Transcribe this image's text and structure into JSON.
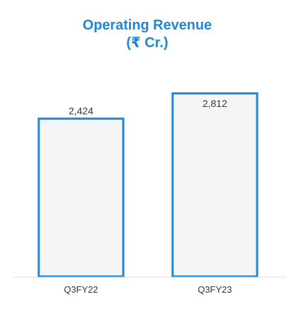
{
  "chart_data": {
    "type": "bar",
    "title": "Operating Revenue",
    "subtitle": "(₹ Cr.)",
    "categories": [
      "Q3FY22",
      "Q3FY23"
    ],
    "values": [
      2424,
      2812
    ],
    "value_labels": [
      "2,424",
      "2,812"
    ],
    "xlabel": "",
    "ylabel": "",
    "ylim": [
      0,
      2950
    ],
    "grid": false,
    "legend": "none",
    "colors": {
      "title": "#1f86d6",
      "bar_stroke": "#1f86d6",
      "bar_fill": "#f5f5f5",
      "axis": "#d9d9d9",
      "text": "#333333"
    }
  }
}
